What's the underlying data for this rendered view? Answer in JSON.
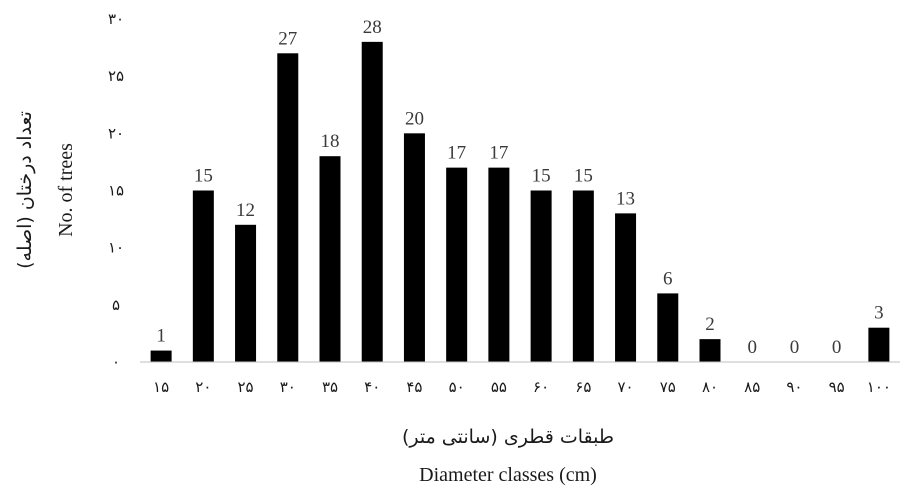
{
  "chart_data": {
    "type": "bar",
    "categories": [
      "۱۵",
      "۲۰",
      "۲۵",
      "۳۰",
      "۳۵",
      "۴۰",
      "۴۵",
      "۵۰",
      "۵۵",
      "۶۰",
      "۶۵",
      "۷۰",
      "۷۵",
      "۸۰",
      "۸۵",
      "۹۰",
      "۹۵",
      "۱۰۰"
    ],
    "values": [
      1,
      15,
      12,
      27,
      18,
      28,
      20,
      17,
      17,
      15,
      15,
      13,
      6,
      2,
      0,
      0,
      0,
      3
    ],
    "data_labels": [
      "1",
      "15",
      "12",
      "27",
      "18",
      "28",
      "20",
      "17",
      "17",
      "15",
      "15",
      "13",
      "6",
      "2",
      "0",
      "0",
      "0",
      "3"
    ],
    "yticks": [
      0,
      5,
      10,
      15,
      20,
      25,
      30
    ],
    "ytick_labels": [
      "۰",
      "۵",
      "۱۰",
      "۱۵",
      "۲۰",
      "۲۵",
      "۳۰"
    ],
    "ylim": [
      0,
      30
    ],
    "xlabel_fa": "طبقات قطری (سانتی متر)",
    "xlabel": "Diameter classes (cm)",
    "ylabel_fa": "تعداد درختان (اصله)",
    "ylabel": "No. of trees",
    "grid": false,
    "bar_color": "#000000"
  }
}
